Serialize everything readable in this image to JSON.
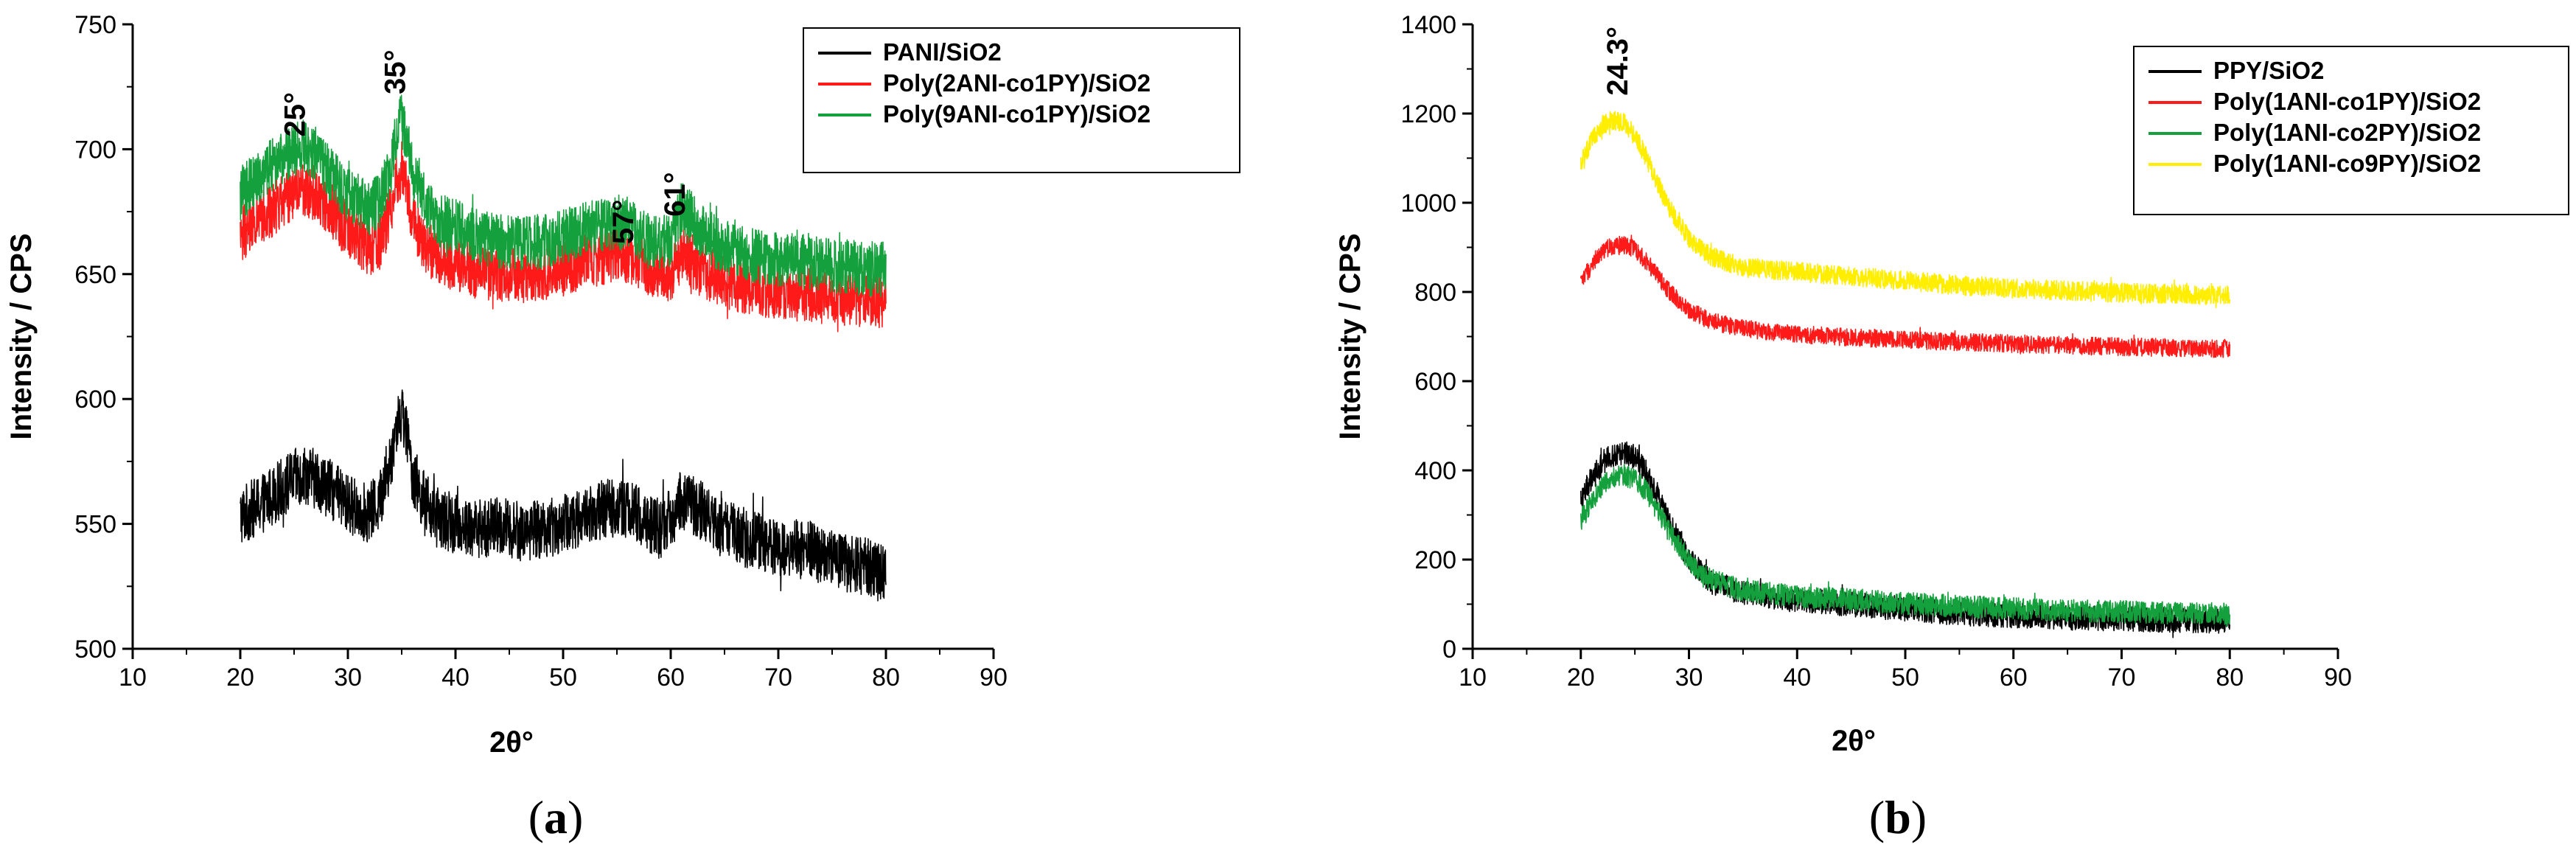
{
  "chart_data": [
    {
      "type": "line",
      "panel_label": "a",
      "xlabel": "2θ°",
      "ylabel": "Intensity / CPS",
      "xlim": [
        10,
        90
      ],
      "ylim": [
        500,
        750
      ],
      "xticks": [
        10,
        20,
        30,
        40,
        50,
        60,
        70,
        80,
        90
      ],
      "yticks": [
        500,
        550,
        600,
        650,
        700,
        750
      ],
      "legend_position": "top-right",
      "series": [
        {
          "name": "PANI/SiO2",
          "color": "#000000",
          "x": [
            20,
            22,
            24,
            25,
            26,
            27,
            28,
            30,
            32,
            33,
            34,
            34.5,
            35,
            35.5,
            36,
            37,
            38,
            40,
            42,
            44,
            46,
            48,
            50,
            52,
            54,
            55,
            56,
            57,
            58,
            59,
            60,
            61,
            62,
            63,
            64,
            66,
            68,
            70,
            72,
            74,
            76,
            78,
            80
          ],
          "values": [
            553,
            558,
            565,
            568,
            570,
            568,
            565,
            558,
            554,
            560,
            575,
            590,
            595,
            585,
            570,
            560,
            553,
            550,
            548,
            549,
            547,
            548,
            550,
            553,
            556,
            557,
            556,
            553,
            550,
            548,
            552,
            560,
            558,
            555,
            550,
            546,
            543,
            541,
            540,
            538,
            535,
            533,
            530
          ],
          "noise": 12
        },
        {
          "name": "Poly(2ANI-co1PY)/SiO2",
          "color": "#ff1a1a",
          "x": [
            20,
            22,
            24,
            25,
            26,
            27,
            28,
            30,
            32,
            33,
            34,
            34.5,
            35,
            35.5,
            36,
            37,
            38,
            40,
            42,
            44,
            46,
            48,
            50,
            52,
            54,
            55,
            56,
            57,
            58,
            59,
            60,
            61,
            62,
            63,
            64,
            66,
            68,
            70,
            72,
            74,
            76,
            78,
            80
          ],
          "values": [
            666,
            672,
            680,
            683,
            684,
            682,
            678,
            668,
            660,
            663,
            675,
            688,
            692,
            684,
            672,
            663,
            657,
            654,
            651,
            650,
            649,
            650,
            652,
            655,
            657,
            658,
            657,
            655,
            652,
            650,
            650,
            658,
            655,
            652,
            649,
            646,
            644,
            643,
            642,
            641,
            640,
            640,
            639
          ],
          "noise": 11
        },
        {
          "name": "Poly(9ANI-co1PY)/SiO2",
          "color": "#14a03c",
          "x": [
            20,
            22,
            24,
            25,
            26,
            27,
            28,
            30,
            32,
            33,
            34,
            34.5,
            35,
            35.5,
            36,
            37,
            38,
            40,
            42,
            44,
            46,
            48,
            50,
            52,
            54,
            55,
            56,
            57,
            58,
            59,
            60,
            61,
            62,
            63,
            64,
            66,
            68,
            70,
            72,
            74,
            76,
            78,
            80
          ],
          "values": [
            682,
            690,
            697,
            700,
            701,
            698,
            692,
            682,
            676,
            680,
            692,
            706,
            712,
            704,
            690,
            680,
            673,
            669,
            665,
            663,
            662,
            663,
            665,
            668,
            670,
            671,
            670,
            667,
            663,
            662,
            664,
            676,
            672,
            667,
            663,
            659,
            657,
            656,
            655,
            654,
            653,
            652,
            652
          ],
          "noise": 11
        }
      ],
      "annotations": [
        {
          "text": "25°",
          "x": 26,
          "y": 705
        },
        {
          "text": "35°",
          "x": 35.3,
          "y": 722
        },
        {
          "text": "57°",
          "x": 56.5,
          "y": 662
        },
        {
          "text": "61°",
          "x": 61.3,
          "y": 673
        }
      ]
    },
    {
      "type": "line",
      "panel_label": "b",
      "xlabel": "2θ°",
      "ylabel": "Intensity / CPS",
      "xlim": [
        10,
        90
      ],
      "ylim": [
        0,
        1400
      ],
      "xticks": [
        10,
        20,
        30,
        40,
        50,
        60,
        70,
        80,
        90
      ],
      "yticks": [
        0,
        200,
        400,
        600,
        800,
        1000,
        1200,
        1400
      ],
      "legend_position": "top-right",
      "series": [
        {
          "name": "PPY/SiO2",
          "color": "#000000",
          "x": [
            20,
            21,
            22,
            23,
            24,
            25,
            26,
            27,
            28,
            30,
            32,
            35,
            40,
            45,
            50,
            55,
            60,
            65,
            70,
            75,
            80
          ],
          "values": [
            340,
            380,
            415,
            435,
            440,
            430,
            400,
            350,
            290,
            200,
            150,
            125,
            110,
            100,
            90,
            80,
            75,
            70,
            67,
            64,
            62
          ],
          "noise": 28
        },
        {
          "name": "Poly(1ANI-co1PY)/SiO2",
          "color": "#ff1a1a",
          "x": [
            20,
            21,
            22,
            23,
            24,
            25,
            26,
            27,
            28,
            30,
            32,
            35,
            40,
            45,
            50,
            55,
            60,
            65,
            70,
            75,
            80
          ],
          "values": [
            820,
            860,
            890,
            905,
            905,
            895,
            870,
            840,
            805,
            760,
            735,
            718,
            705,
            698,
            692,
            688,
            684,
            680,
            677,
            675,
            672
          ],
          "noise": 20
        },
        {
          "name": "Poly(1ANI-co2PY)/SiO2",
          "color": "#14a03c",
          "x": [
            20,
            21,
            22,
            23,
            24,
            25,
            26,
            27,
            28,
            30,
            32,
            35,
            40,
            45,
            50,
            55,
            60,
            65,
            70,
            75,
            80
          ],
          "values": [
            290,
            330,
            365,
            385,
            390,
            380,
            355,
            315,
            270,
            195,
            155,
            130,
            118,
            110,
            102,
            95,
            90,
            86,
            83,
            80,
            78
          ],
          "noise": 25
        },
        {
          "name": "Poly(1ANI-co9PY)/SiO2",
          "color": "#ffee00",
          "x": [
            20,
            21,
            22,
            23,
            24,
            25,
            26,
            27,
            28,
            30,
            32,
            35,
            40,
            45,
            50,
            55,
            60,
            65,
            70,
            75,
            80
          ],
          "values": [
            1090,
            1140,
            1175,
            1185,
            1180,
            1150,
            1105,
            1050,
            995,
            920,
            880,
            855,
            845,
            835,
            825,
            815,
            808,
            803,
            798,
            795,
            792
          ],
          "noise": 22
        }
      ],
      "annotations": [
        {
          "text": "24.3°",
          "x": 24.3,
          "y": 1240
        }
      ]
    }
  ]
}
